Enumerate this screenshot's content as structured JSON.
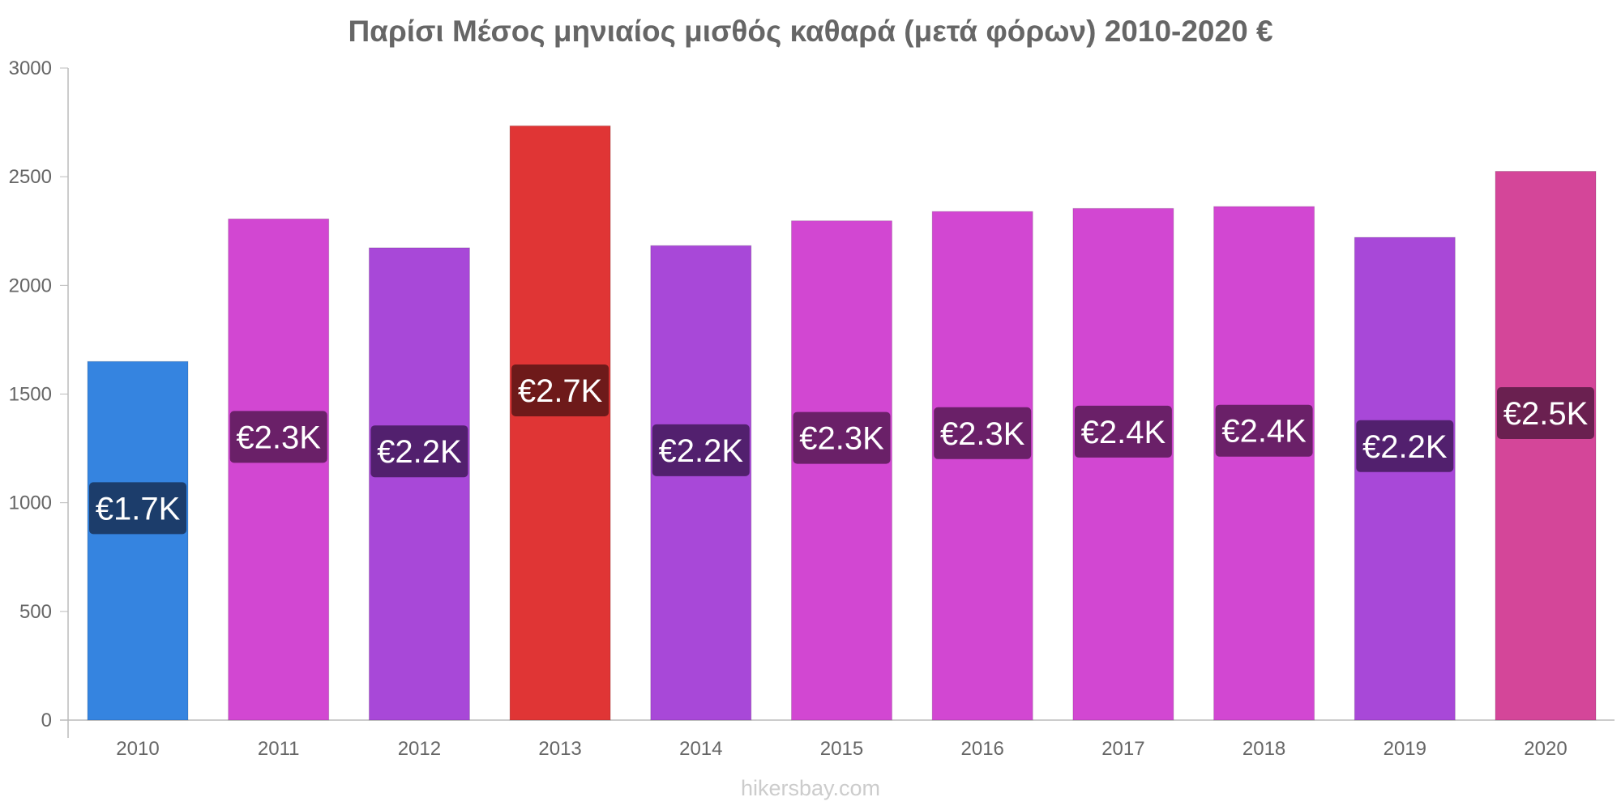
{
  "chart_data": {
    "type": "bar",
    "title": "Παρίσι Μέσος μηνιαίος μισθός καθαρά (μετά φόρων) 2010-2020 €",
    "categories": [
      "2010",
      "2011",
      "2012",
      "2013",
      "2014",
      "2015",
      "2016",
      "2017",
      "2018",
      "2019",
      "2020"
    ],
    "values": [
      1650,
      2306,
      2173,
      2734,
      2183,
      2297,
      2340,
      2354,
      2363,
      2221,
      2525
    ],
    "labels": [
      "€1.7K",
      "€2.3K",
      "€2.2K",
      "€2.7K",
      "€2.2K",
      "€2.3K",
      "€2.3K",
      "€2.4K",
      "€2.4K",
      "€2.2K",
      "€2.5K"
    ],
    "colors": [
      "#3584e0",
      "#d247d2",
      "#a848d8",
      "#e03535",
      "#a848d8",
      "#d247d2",
      "#d247d2",
      "#d247d2",
      "#d247d2",
      "#a848d8",
      "#d44699"
    ],
    "label_colors": [
      "#1c3d6b",
      "#6a2068",
      "#52206e",
      "#6e1a1a",
      "#52206e",
      "#6a2068",
      "#6a2068",
      "#6a2068",
      "#6a2068",
      "#52206e",
      "#6a2050"
    ],
    "yticks": [
      "0",
      "500",
      "1000",
      "1500",
      "2000",
      "2500",
      "3000"
    ],
    "ylim": [
      0,
      3000
    ],
    "xlabel": "",
    "ylabel": "",
    "grid": false
  },
  "watermark": "hikersbay.com"
}
